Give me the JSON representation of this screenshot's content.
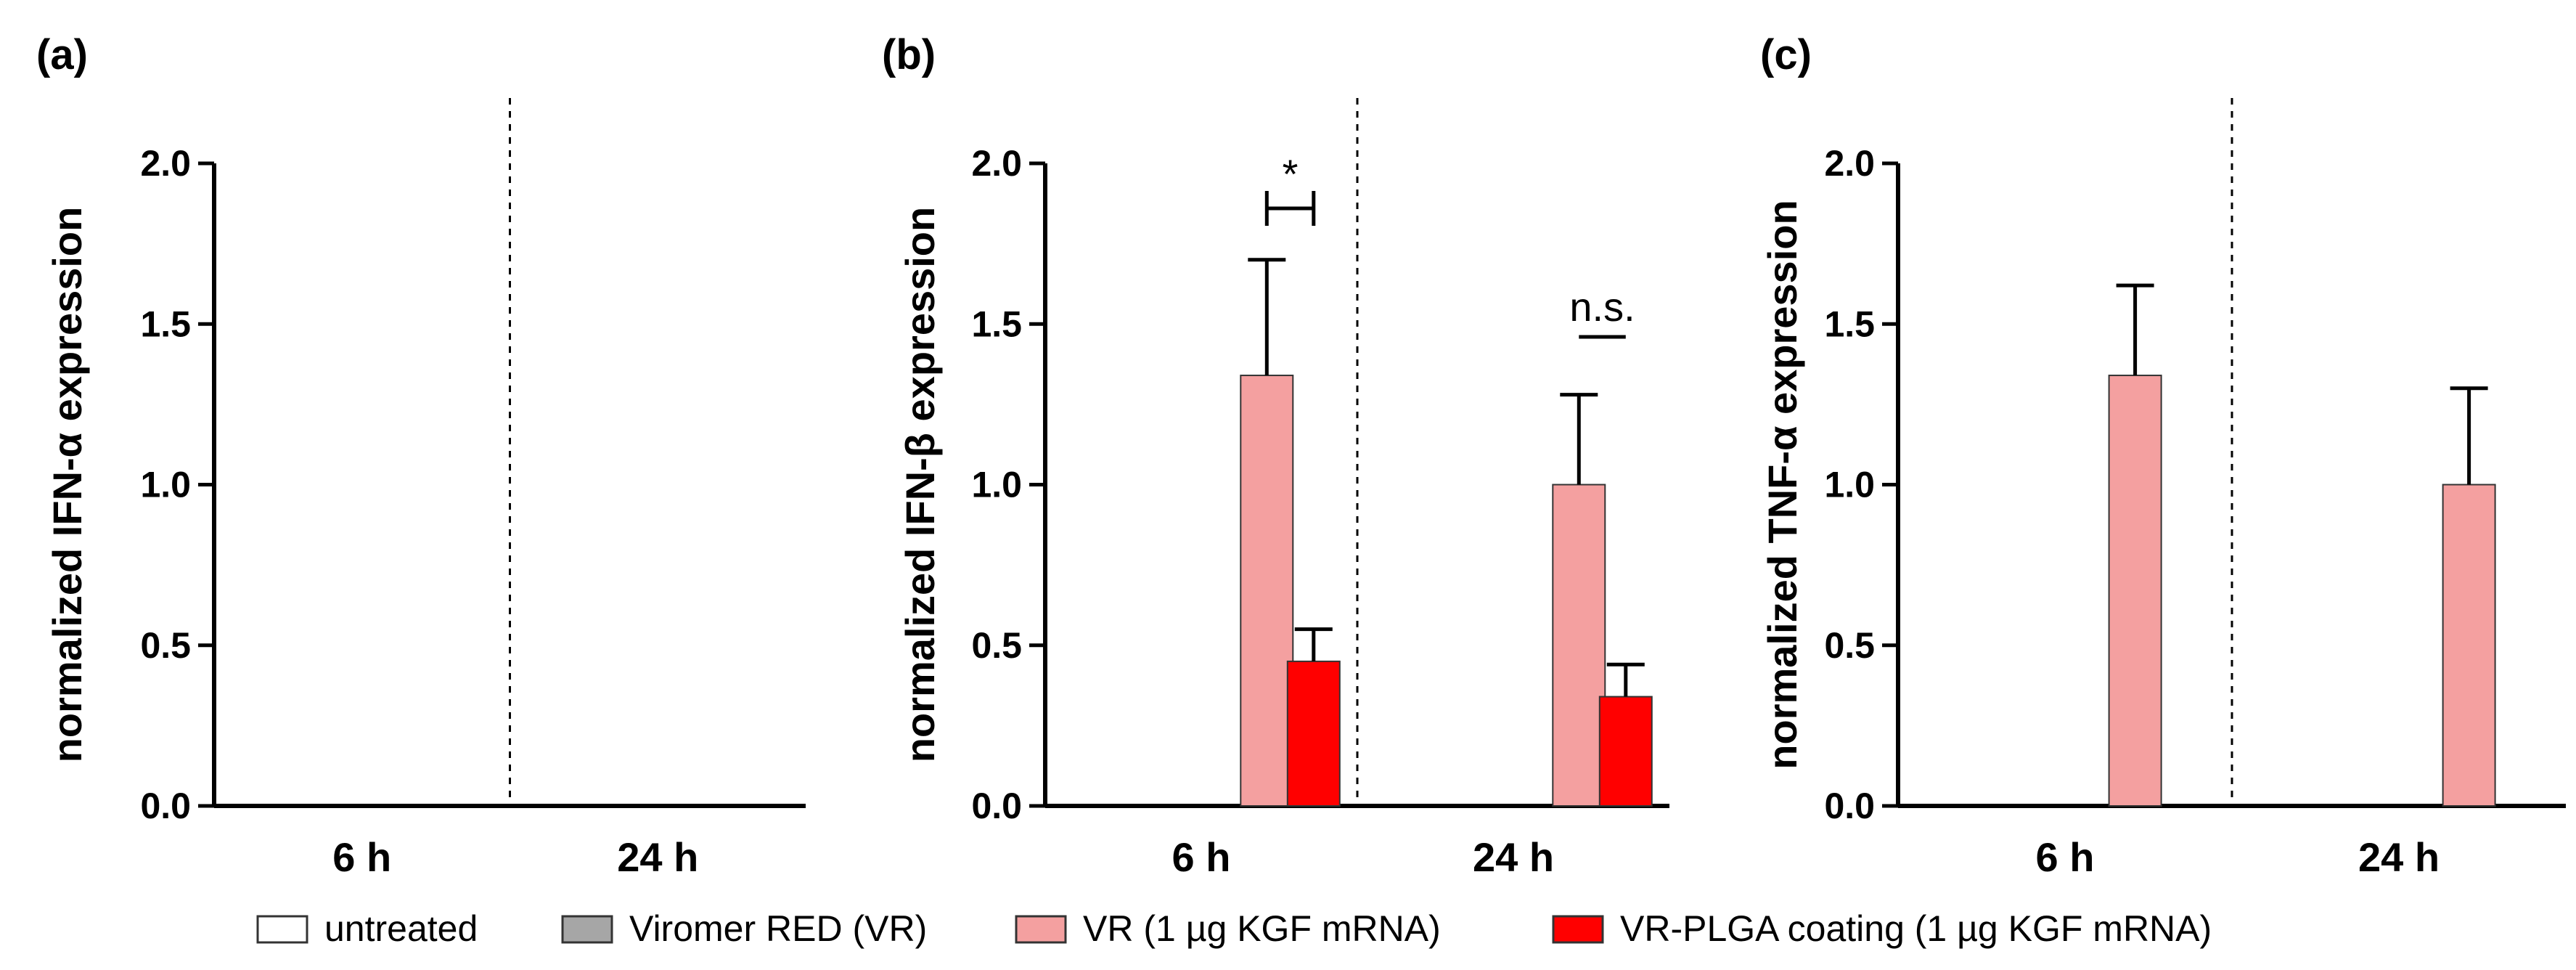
{
  "chart_data": [
    {
      "type": "bar",
      "panel_label": "(a)",
      "ylabel": "normalized IFN-α expression",
      "ylim": [
        0,
        2.0
      ],
      "yticks": [
        "0.0",
        "0.5",
        "1.0",
        "1.5",
        "2.0"
      ],
      "categories": [
        "6 h",
        "24 h"
      ],
      "series": [
        {
          "name": "untreated",
          "values": [
            0,
            0
          ],
          "errors": [
            0,
            0
          ]
        },
        {
          "name": "Viromer RED (VR)",
          "values": [
            0,
            0
          ],
          "errors": [
            0,
            0
          ]
        },
        {
          "name": "VR (1 µg KGF mRNA)",
          "values": [
            0,
            0
          ],
          "errors": [
            0,
            0
          ]
        },
        {
          "name": "VR-PLGA coating (1 µg KGF mRNA)",
          "values": [
            0,
            0
          ],
          "errors": [
            0,
            0
          ]
        }
      ],
      "annotations": []
    },
    {
      "type": "bar",
      "panel_label": "(b)",
      "ylabel": "normalized IFN-β expression",
      "ylim": [
        0,
        2.0
      ],
      "yticks": [
        "0.0",
        "0.5",
        "1.0",
        "1.5",
        "2.0"
      ],
      "categories": [
        "6 h",
        "24 h"
      ],
      "series": [
        {
          "name": "untreated",
          "values": [
            0,
            0
          ],
          "errors": [
            0,
            0
          ]
        },
        {
          "name": "Viromer RED (VR)",
          "values": [
            0,
            0
          ],
          "errors": [
            0,
            0
          ]
        },
        {
          "name": "VR (1 µg KGF mRNA)",
          "values": [
            1.34,
            1.0
          ],
          "errors": [
            0.36,
            0.28
          ]
        },
        {
          "name": "VR-PLGA coating (1 µg KGF mRNA)",
          "values": [
            0.45,
            0.34
          ],
          "errors": [
            0.1,
            0.1
          ]
        }
      ],
      "annotations": [
        {
          "text": "*",
          "category": 0,
          "style": "bracket",
          "from_series": 2,
          "to_series": 3,
          "y": 1.86
        },
        {
          "text": "n.s.",
          "category": 1,
          "style": "line",
          "from_series": 2,
          "to_series": 3,
          "y": 1.46
        }
      ]
    },
    {
      "type": "bar",
      "panel_label": "(c)",
      "ylabel": "normalized TNF-α expression",
      "ylim": [
        0,
        2.0
      ],
      "yticks": [
        "0.0",
        "0.5",
        "1.0",
        "1.5",
        "2.0"
      ],
      "categories": [
        "6 h",
        "24 h"
      ],
      "series": [
        {
          "name": "untreated",
          "values": [
            0,
            0
          ],
          "errors": [
            0,
            0
          ]
        },
        {
          "name": "Viromer RED (VR)",
          "values": [
            0,
            0
          ],
          "errors": [
            0,
            0
          ]
        },
        {
          "name": "VR (1 µg KGF mRNA)",
          "values": [
            1.34,
            1.0
          ],
          "errors": [
            0.28,
            0.3
          ]
        },
        {
          "name": "VR-PLGA coating (1 µg KGF mRNA)",
          "values": [
            0,
            0
          ],
          "errors": [
            0,
            0
          ]
        }
      ],
      "annotations": []
    }
  ],
  "legend": {
    "items": [
      {
        "label": "untreated",
        "color": "#ffffff"
      },
      {
        "label": "Viromer RED (VR)",
        "color": "#a6a6a6"
      },
      {
        "label": "VR (1 µg KGF mRNA)",
        "color": "#f4a0a0"
      },
      {
        "label": "VR-PLGA coating (1 µg KGF mRNA)",
        "color": "#ff0000"
      }
    ]
  }
}
